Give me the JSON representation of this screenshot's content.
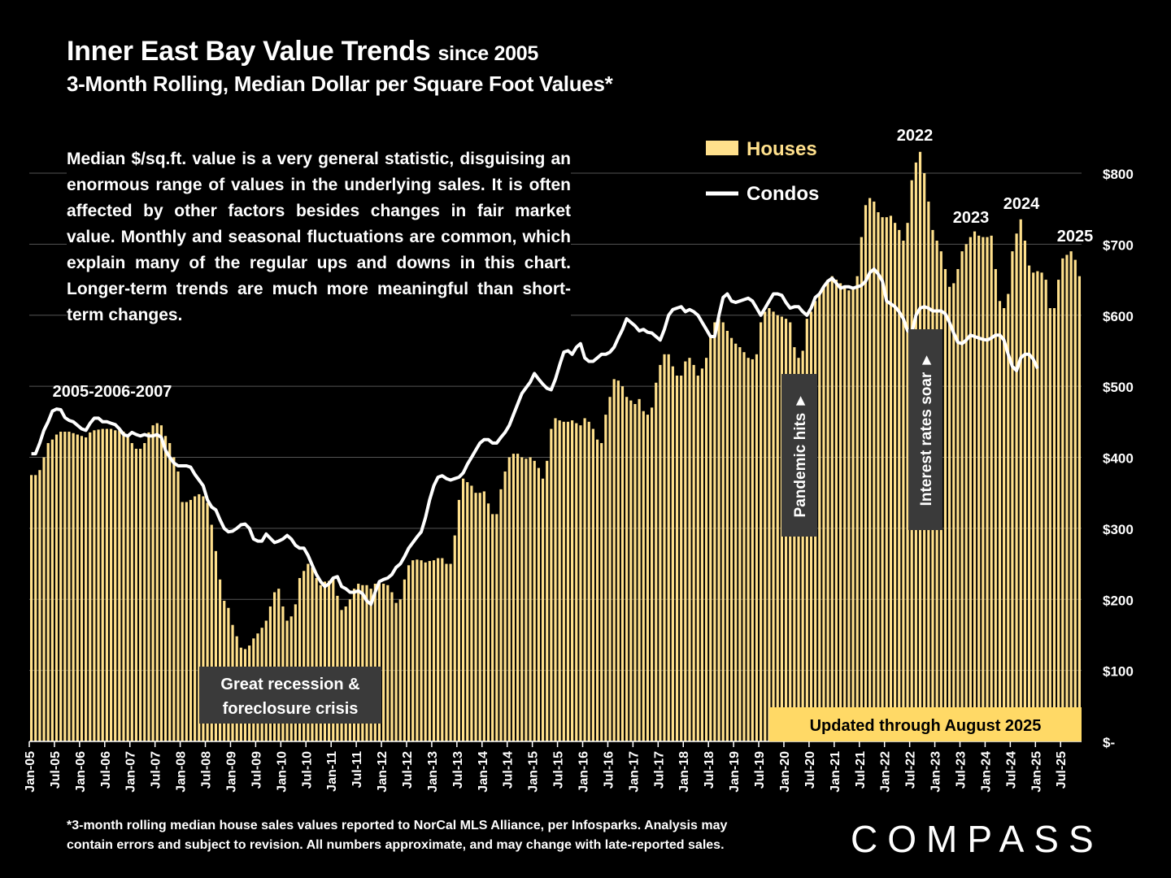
{
  "title": {
    "main": "Inner East Bay Value Trends",
    "suffix": "since 2005"
  },
  "subtitle": "3-Month Rolling, Median Dollar per Square Foot Values*",
  "note": "Median $/sq.ft. value is a very general statistic, disguising an enormous range of values in the underlying sales. It is often affected by other factors besides changes in fair market value. Monthly and seasonal fluctuations are common, which explain many of the regular ups and downs in this chart. Longer-term trends are much more meaningful than short-term changes.",
  "footnote_line1": "*3-month rolling median house sales values reported to NorCal MLS Alliance, per Infosparks. Analysis may",
  "footnote_line2": "contain errors and subject to revision. All numbers approximate, and may change with late-reported sales.",
  "logo": "COMPASS",
  "colors": {
    "houses": "#FFE08C",
    "condos": "#FFFFFF",
    "background": "#000000",
    "grid": "#555555",
    "annotation_box": "#3a3a3a",
    "update_box": "#FFD966"
  },
  "chart_data": {
    "type": "bar",
    "overlay_type": "line",
    "title": "Inner East Bay Value Trends since 2005",
    "ylabel": "",
    "ylim": [
      0,
      800
    ],
    "y_ticks": [
      "$-",
      "$100",
      "$200",
      "$300",
      "$400",
      "$500",
      "$600",
      "$700",
      "$800"
    ],
    "y_tick_values": [
      0,
      100,
      200,
      300,
      400,
      500,
      600,
      700,
      800
    ],
    "x_tick_labels": [
      "Jan-05",
      "Jul-05",
      "Jan-06",
      "Jul-06",
      "Jan-07",
      "Jul-07",
      "Jan-08",
      "Jul-08",
      "Jan-09",
      "Jul-09",
      "Jan-10",
      "Jul-10",
      "Jan-11",
      "Jul-11",
      "Jan-12",
      "Jul-12",
      "Jan-13",
      "Jul-13",
      "Jan-14",
      "Jul-14",
      "Jan-15",
      "Jul-15",
      "Jan-16",
      "Jul-16",
      "Jan-17",
      "Jul-17",
      "Jan-18",
      "Jul-18",
      "Jan-19",
      "Jul-19",
      "Jan-20",
      "Jul-20",
      "Jan-21",
      "Jul-21",
      "Jan-22",
      "Jul-22",
      "Jan-23",
      "Jul-23",
      "Jan-24",
      "Jul-24",
      "Jan-25",
      "Jul-25"
    ],
    "x_start": "Jan-05",
    "x_end": "Aug-25",
    "grid": true,
    "legend_position": "top-right",
    "series": [
      {
        "name": "Houses",
        "type": "bar",
        "values": [
          375,
          375,
          382,
          400,
          420,
          425,
          432,
          436,
          436,
          436,
          434,
          432,
          430,
          428,
          435,
          438,
          439,
          440,
          440,
          440,
          438,
          438,
          436,
          430,
          420,
          412,
          412,
          420,
          435,
          445,
          448,
          445,
          430,
          420,
          400,
          380,
          337,
          337,
          340,
          345,
          348,
          345,
          336,
          305,
          268,
          228,
          198,
          188,
          164,
          148,
          132,
          130,
          135,
          145,
          152,
          160,
          170,
          190,
          210,
          215,
          190,
          170,
          176,
          193,
          230,
          240,
          250,
          245,
          230,
          220,
          225,
          226,
          230,
          205,
          185,
          190,
          200,
          215,
          222,
          220,
          220,
          215,
          222,
          223,
          222,
          220,
          210,
          195,
          200,
          228,
          248,
          255,
          256,
          255,
          252,
          254,
          255,
          258,
          258,
          250,
          250,
          290,
          340,
          370,
          365,
          360,
          350,
          350,
          352,
          335,
          320,
          320,
          355,
          380,
          400,
          405,
          405,
          400,
          398,
          400,
          395,
          385,
          370,
          395,
          440,
          455,
          452,
          450,
          450,
          452,
          448,
          445,
          455,
          450,
          440,
          425,
          420,
          460,
          485,
          510,
          508,
          500,
          485,
          480,
          475,
          482,
          465,
          460,
          470,
          505,
          530,
          545,
          545,
          528,
          515,
          515,
          535,
          540,
          530,
          515,
          525,
          540,
          570,
          590,
          595,
          590,
          578,
          568,
          560,
          555,
          548,
          540,
          538,
          545,
          590,
          605,
          610,
          605,
          600,
          598,
          595,
          590,
          555,
          540,
          550,
          595,
          605,
          620,
          630,
          640,
          650,
          655,
          650,
          645,
          640,
          635,
          640,
          655,
          710,
          755,
          765,
          760,
          745,
          738,
          738,
          740,
          730,
          720,
          705,
          730,
          790,
          815,
          830,
          800,
          760,
          720,
          705,
          690,
          665,
          640,
          645,
          665,
          690,
          700,
          710,
          718,
          712,
          710,
          710,
          712,
          665,
          620,
          610,
          630,
          690,
          715,
          735,
          705,
          670,
          660,
          662,
          660,
          650,
          610,
          610,
          650,
          680,
          685,
          690,
          678,
          655
        ]
      },
      {
        "name": "Condos",
        "type": "line",
        "values": [
          405,
          405,
          420,
          438,
          450,
          465,
          468,
          467,
          456,
          452,
          450,
          445,
          440,
          438,
          448,
          455,
          455,
          450,
          450,
          448,
          446,
          440,
          432,
          430,
          435,
          432,
          430,
          432,
          430,
          430,
          432,
          428,
          410,
          400,
          392,
          388,
          388,
          388,
          386,
          376,
          368,
          360,
          340,
          330,
          326,
          312,
          300,
          295,
          296,
          300,
          305,
          306,
          300,
          285,
          282,
          282,
          292,
          286,
          280,
          282,
          285,
          290,
          285,
          276,
          272,
          272,
          262,
          248,
          235,
          225,
          218,
          222,
          230,
          232,
          218,
          215,
          210,
          210,
          212,
          208,
          198,
          193,
          210,
          225,
          228,
          230,
          235,
          245,
          250,
          260,
          272,
          280,
          288,
          295,
          315,
          340,
          360,
          372,
          374,
          370,
          368,
          370,
          372,
          378,
          390,
          400,
          410,
          420,
          425,
          425,
          420,
          420,
          428,
          435,
          445,
          460,
          475,
          490,
          498,
          506,
          518,
          510,
          503,
          497,
          495,
          510,
          530,
          548,
          550,
          545,
          555,
          560,
          540,
          535,
          535,
          540,
          545,
          545,
          548,
          555,
          568,
          580,
          595,
          590,
          585,
          578,
          580,
          576,
          575,
          570,
          565,
          580,
          600,
          608,
          610,
          612,
          605,
          608,
          605,
          600,
          590,
          580,
          570,
          570,
          600,
          625,
          630,
          620,
          618,
          620,
          622,
          624,
          620,
          610,
          600,
          610,
          620,
          630,
          630,
          628,
          618,
          610,
          612,
          612,
          605,
          600,
          610,
          625,
          630,
          640,
          648,
          652,
          645,
          638,
          640,
          640,
          638,
          640,
          642,
          648,
          660,
          665,
          658,
          648,
          620,
          616,
          612,
          605,
          595,
          578,
          575,
          600,
          610,
          612,
          610,
          606,
          606,
          606,
          602,
          590,
          575,
          562,
          560,
          565,
          572,
          570,
          568,
          566,
          565,
          568,
          572,
          572,
          565,
          545,
          528,
          522,
          540,
          545,
          545,
          538,
          525
        ]
      }
    ],
    "annotations": [
      {
        "text": "2005-2006-2007"
      },
      {
        "text": "Great recession & foreclosure crisis"
      },
      {
        "text": "Pandemic hits ►"
      },
      {
        "text": "Interest rates soar ►"
      },
      {
        "text": "2022"
      },
      {
        "text": "2023"
      },
      {
        "text": "2024"
      },
      {
        "text": "2025"
      },
      {
        "text": "Updated through August 2025"
      }
    ]
  }
}
